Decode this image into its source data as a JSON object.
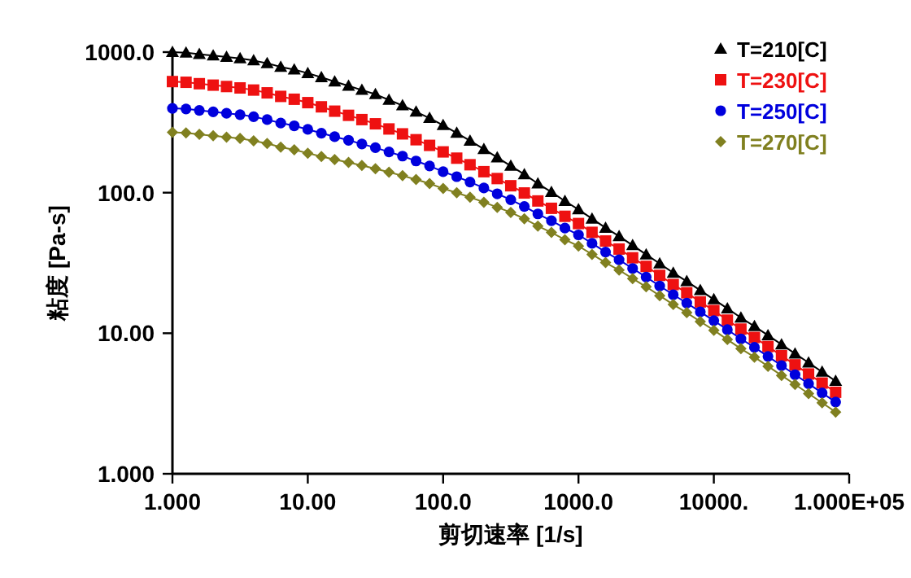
{
  "chart_data": {
    "type": "line",
    "xlabel": "剪切速率 [1/s]",
    "ylabel": "粘度 [Pa-s]",
    "log": "xy",
    "grid": false,
    "legend": "top right",
    "xlim": [
      1,
      100000
    ],
    "ylim": [
      1,
      1000
    ],
    "xticks": [
      {
        "value": 1,
        "label": "1.000"
      },
      {
        "value": 10,
        "label": "10.00"
      },
      {
        "value": 100,
        "label": "100.0"
      },
      {
        "value": 1000,
        "label": "1000.0"
      },
      {
        "value": 10000,
        "label": "10000."
      },
      {
        "value": 100000,
        "label": "1.000E+05"
      }
    ],
    "yticks": [
      {
        "value": 1,
        "label": "1.000"
      },
      {
        "value": 10,
        "label": "10.00"
      },
      {
        "value": 100,
        "label": "100.0"
      },
      {
        "value": 1000,
        "label": "1000.0"
      }
    ],
    "x": [
      1,
      1.26,
      1.58,
      2,
      2.51,
      3.16,
      3.98,
      5.01,
      6.31,
      7.94,
      10,
      12.6,
      15.8,
      20,
      25.1,
      31.6,
      39.8,
      50.1,
      63.1,
      79.4,
      100,
      126,
      158,
      200,
      251,
      316,
      398,
      501,
      631,
      794,
      1000,
      1259,
      1585,
      1995,
      2512,
      3162,
      3981,
      5012,
      6310,
      7943,
      10000,
      12589,
      15849,
      19953,
      25119,
      31623,
      39811,
      50119,
      63096,
      79433
    ],
    "series": [
      {
        "name": "T=210[C]",
        "color": "#000000",
        "marker": "triangle",
        "values": [
          1000,
          989,
          966,
          944,
          923,
          902,
          871,
          832,
          785,
          750,
          708,
          661,
          617,
          575,
          537,
          501,
          457,
          417,
          376,
          339,
          302,
          266,
          234,
          204,
          178,
          155,
          135,
          116,
          101,
          87.1,
          75.9,
          65.3,
          56.2,
          49.0,
          42.2,
          36.3,
          31.3,
          26.9,
          23.4,
          20.2,
          17.4,
          15.0,
          12.9,
          11.2,
          9.66,
          8.32,
          7.16,
          6.17,
          5.31,
          4.57
        ]
      },
      {
        "name": "T=230[C]",
        "color": "#ee1111",
        "marker": "square",
        "values": [
          617,
          610,
          596,
          582,
          569,
          556,
          537,
          513,
          484,
          462,
          437,
          408,
          380,
          355,
          331,
          309,
          284,
          262,
          238,
          217,
          195,
          176,
          158,
          141,
          126,
          112,
          99.5,
          87.3,
          77.4,
          67.9,
          60.3,
          52.2,
          45.3,
          39.7,
          34.4,
          29.9,
          25.8,
          22.2,
          19.4,
          16.7,
          14.5,
          12.4,
          10.7,
          9.33,
          8.04,
          6.92,
          5.96,
          5.13,
          4.42,
          3.8
        ]
      },
      {
        "name": "T=250[C]",
        "color": "#0000dd",
        "marker": "circle",
        "values": [
          398,
          394,
          385,
          376,
          367,
          359,
          347,
          331,
          313,
          299,
          282,
          265,
          250,
          236,
          222,
          209,
          195,
          182,
          168,
          155,
          141,
          130,
          119,
          108,
          98.2,
          89.1,
          79.8,
          70.6,
          63.2,
          56.0,
          50.1,
          43.6,
          37.8,
          33.3,
          28.9,
          25.1,
          21.7,
          18.8,
          16.4,
          14.2,
          12.3,
          10.6,
          9.12,
          7.94,
          6.84,
          5.89,
          5.07,
          4.37,
          3.76,
          3.24
        ]
      },
      {
        "name": "T=270[C]",
        "color": "#808020",
        "marker": "diamond",
        "values": [
          269,
          266,
          260,
          254,
          248,
          243,
          234,
          224,
          211,
          202,
          191,
          181,
          172,
          164,
          156,
          148,
          140,
          132,
          124,
          116,
          107,
          99.8,
          92.9,
          85.5,
          78.7,
          72.4,
          65.2,
          57.9,
          52.1,
          46.3,
          41.7,
          36.4,
          31.8,
          28.1,
          24.5,
          21.4,
          18.5,
          16.0,
          14.0,
          12.1,
          10.5,
          9.02,
          7.76,
          6.76,
          5.82,
          5.01,
          4.32,
          3.72,
          3.2,
          2.75
        ]
      }
    ]
  }
}
